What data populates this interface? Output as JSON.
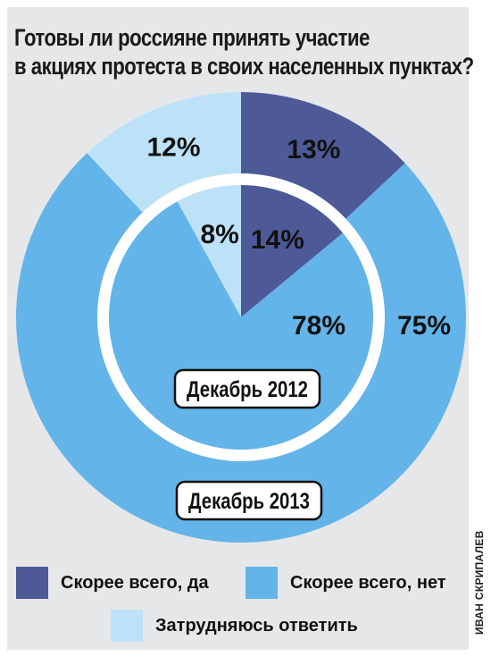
{
  "title_lines": [
    "Готовы ли россияне принять участие",
    "в акциях протеста в своих населенных пунктах?"
  ],
  "credit": "ИВАН СКРИПАЛЕВ",
  "colors": {
    "yes": "#4e5a97",
    "no": "#63b4e9",
    "unsure": "#bde2f8",
    "background": "#e6e7e9"
  },
  "legend": [
    {
      "label": "Скорее всего, да",
      "color_key": "yes"
    },
    {
      "label": "Скорее всего, нет",
      "color_key": "no"
    },
    {
      "label": "Затрудняюсь ответить",
      "color_key": "unsure"
    }
  ],
  "chart_data": [
    {
      "type": "pie",
      "ring": "outer",
      "period_label": "Декабрь 2013",
      "slices": [
        {
          "label": "Скорее всего, да",
          "value": 13,
          "display": "13%",
          "color_key": "yes"
        },
        {
          "label": "Скорее всего, нет",
          "value": 75,
          "display": "75%",
          "color_key": "no"
        },
        {
          "label": "Затрудняюсь ответить",
          "value": 12,
          "display": "12%",
          "color_key": "unsure"
        }
      ]
    },
    {
      "type": "pie",
      "ring": "inner",
      "period_label": "Декабрь 2012",
      "slices": [
        {
          "label": "Скорее всего, да",
          "value": 14,
          "display": "14%",
          "color_key": "yes"
        },
        {
          "label": "Скорее всего, нет",
          "value": 78,
          "display": "78%",
          "color_key": "no"
        },
        {
          "label": "Затрудняюсь ответить",
          "value": 8,
          "display": "8%",
          "color_key": "unsure"
        }
      ]
    }
  ]
}
